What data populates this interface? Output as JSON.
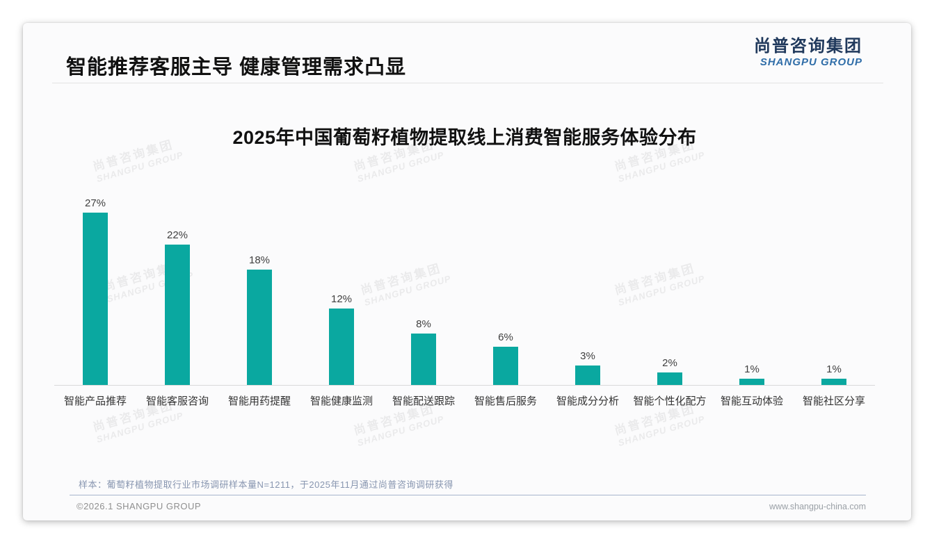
{
  "page": {
    "title": "智能推荐客服主导 健康管理需求凸显"
  },
  "logo": {
    "cn": "尚普咨询集团",
    "en": "SHANGPU GROUP",
    "cn_color": "#20395c",
    "en_color": "#2f6da8"
  },
  "chart_data": {
    "type": "bar",
    "title": "2025年中国葡萄籽植物提取线上消费智能服务体验分布",
    "categories": [
      "智能产品推荐",
      "智能客服咨询",
      "智能用药提醒",
      "智能健康监测",
      "智能配送跟踪",
      "智能售后服务",
      "智能成分分析",
      "智能个性化配方",
      "智能互动体验",
      "智能社区分享"
    ],
    "values": [
      27,
      22,
      18,
      12,
      8,
      6,
      3,
      2,
      1,
      1
    ],
    "unit": "%",
    "value_labels": true,
    "bar_color": "#0aa8a0",
    "xlabel": "",
    "ylabel": "",
    "ylim": [
      0,
      30
    ],
    "grid": false,
    "legend": false,
    "axis_line_color": "#d9d9d9"
  },
  "watermark": {
    "cn": "尚普咨询集团",
    "en": "SHANGPU GROUP"
  },
  "footnote": "样本：葡萄籽植物提取行业市场调研样本量N=1211，于2025年11月通过尚普咨询调研获得",
  "footer": {
    "left": "©2026.1 SHANGPU GROUP",
    "right": "www.shangpu-china.com"
  }
}
